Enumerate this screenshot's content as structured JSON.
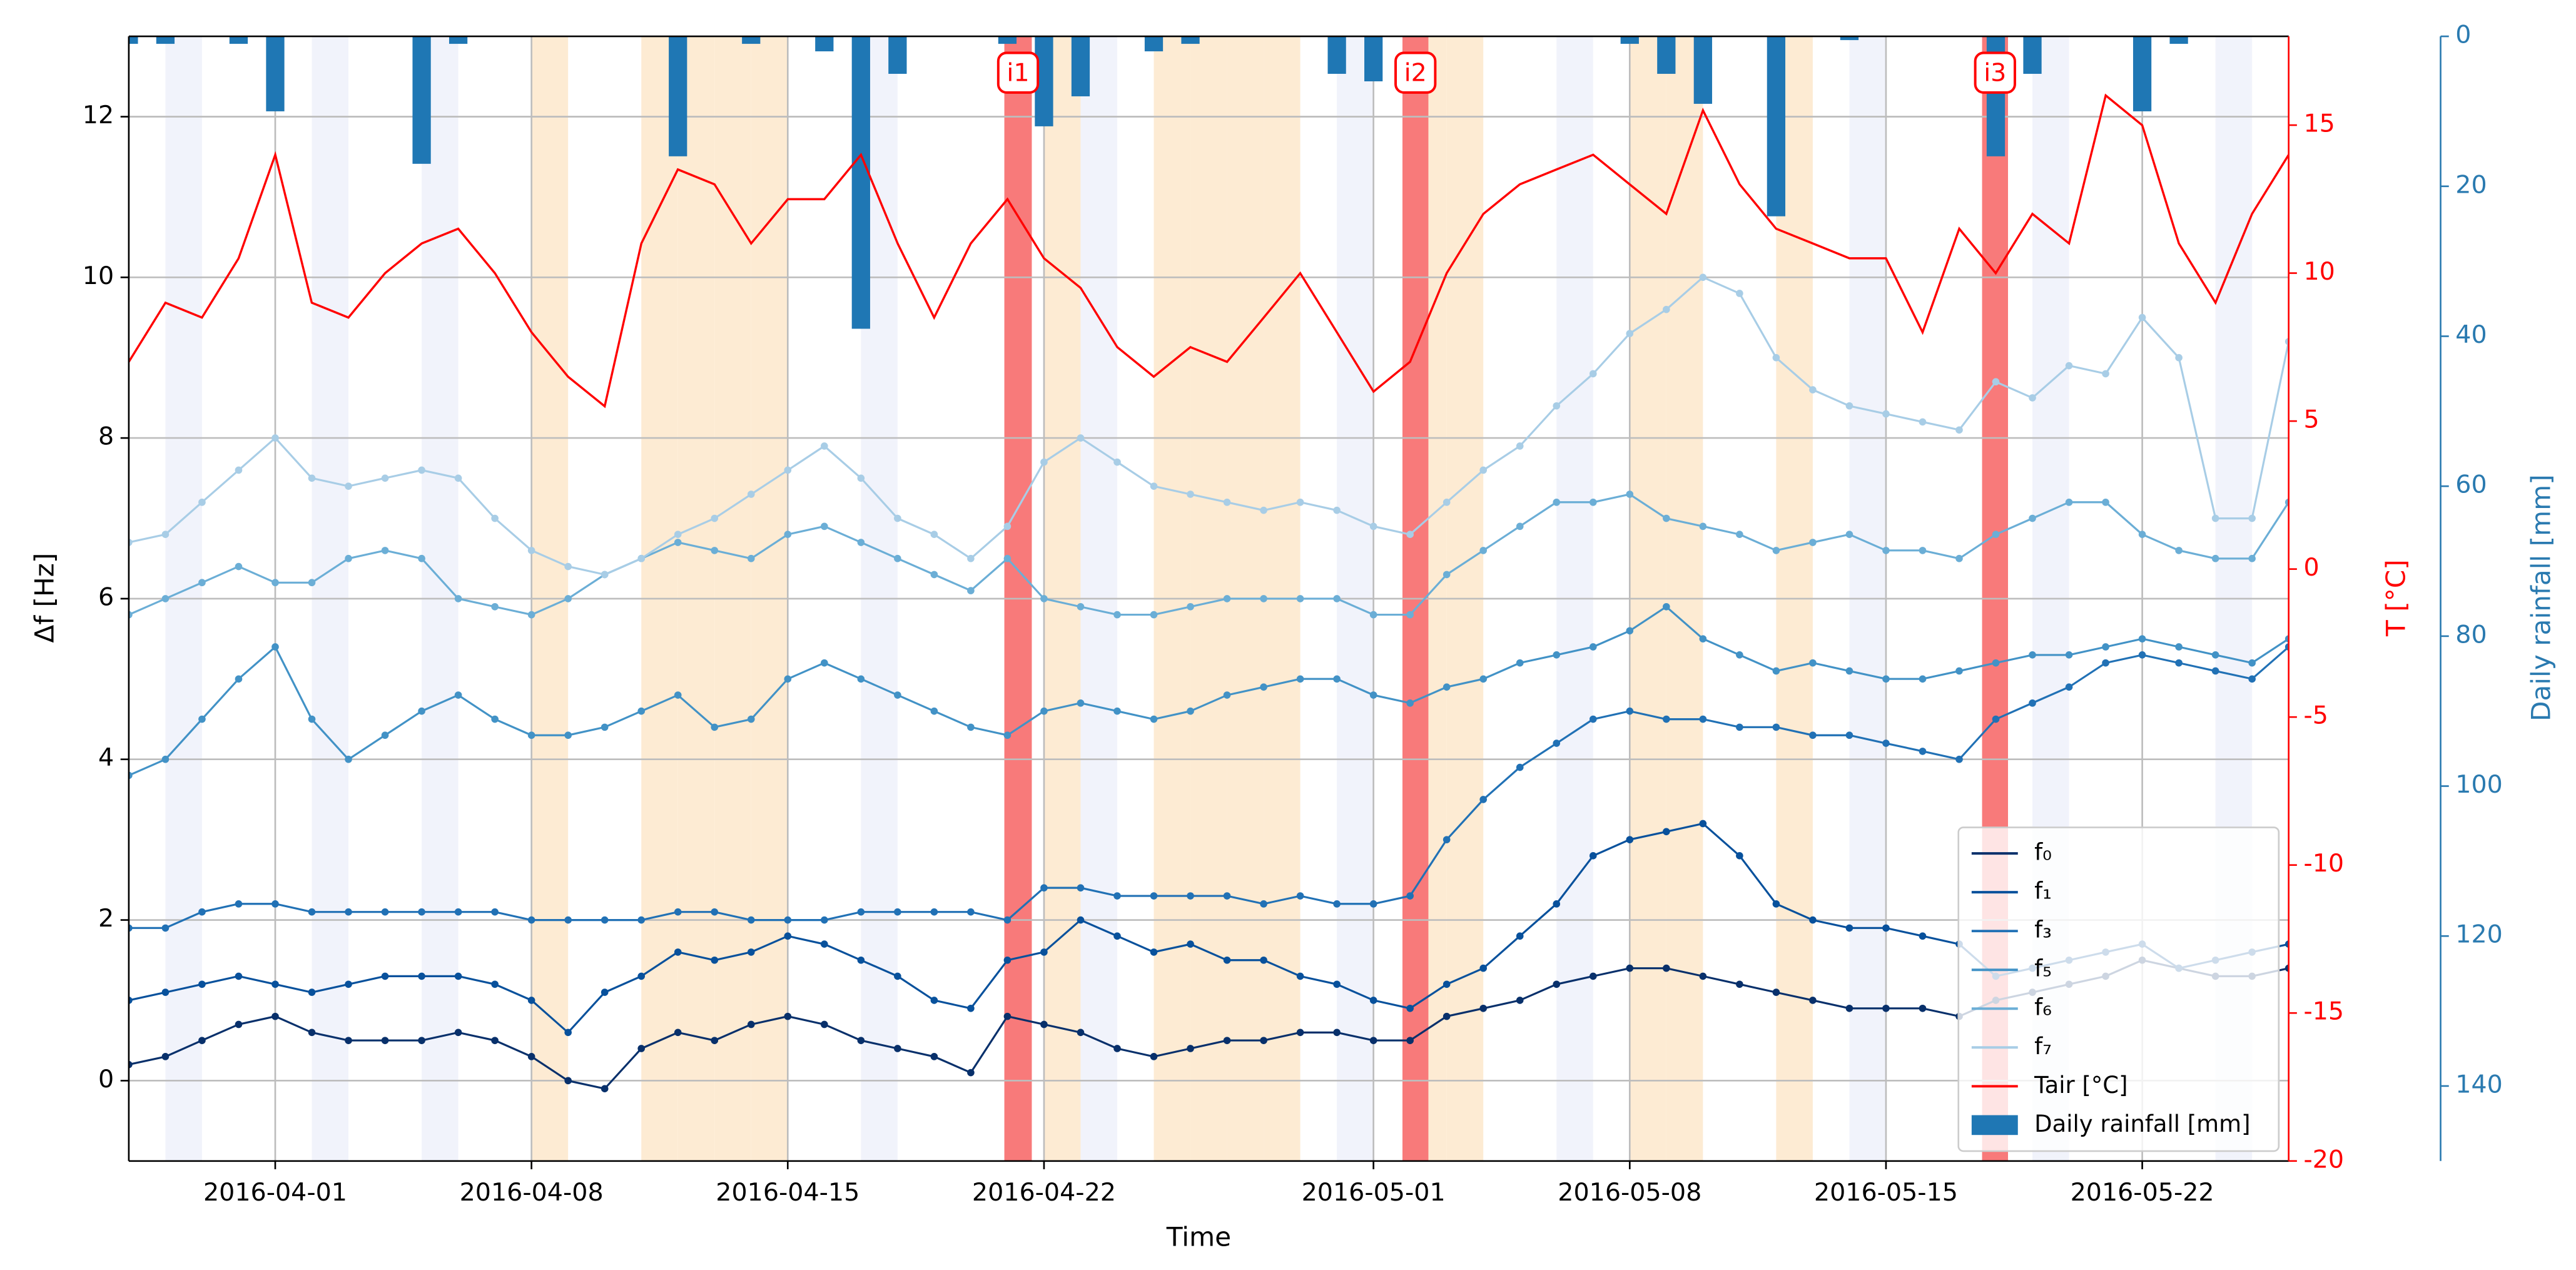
{
  "chart_data": {
    "type": "line",
    "xlabel": "Time",
    "ylabel": "Δf [Hz]",
    "y2label": "T [°C]",
    "y3label": "Daily rainfall [mm]",
    "xlim": [
      "2016-03-28",
      "2016-05-26"
    ],
    "xticks": [
      "2016-04-01",
      "2016-04-08",
      "2016-04-15",
      "2016-04-22",
      "2016-05-01",
      "2016-05-08",
      "2016-05-15",
      "2016-05-22"
    ],
    "ylim": [
      -1,
      13
    ],
    "yticks": [
      0,
      2,
      4,
      6,
      8,
      10,
      12
    ],
    "y2lim": [
      -20,
      18
    ],
    "y2ticks": [
      -20,
      -15,
      -10,
      -5,
      0,
      5,
      10,
      15
    ],
    "y3lim": [
      150,
      0
    ],
    "y3ticks": [
      0,
      20,
      40,
      60,
      80,
      100,
      120,
      140
    ],
    "grid": true,
    "legend": "lower right",
    "x": [
      "2016-03-28",
      "2016-03-29",
      "2016-03-30",
      "2016-03-31",
      "2016-04-01",
      "2016-04-02",
      "2016-04-03",
      "2016-04-04",
      "2016-04-05",
      "2016-04-06",
      "2016-04-07",
      "2016-04-08",
      "2016-04-09",
      "2016-04-10",
      "2016-04-11",
      "2016-04-12",
      "2016-04-13",
      "2016-04-14",
      "2016-04-15",
      "2016-04-16",
      "2016-04-17",
      "2016-04-18",
      "2016-04-19",
      "2016-04-20",
      "2016-04-21",
      "2016-04-22",
      "2016-04-23",
      "2016-04-24",
      "2016-04-25",
      "2016-04-26",
      "2016-04-27",
      "2016-04-28",
      "2016-04-29",
      "2016-04-30",
      "2016-05-01",
      "2016-05-02",
      "2016-05-03",
      "2016-05-04",
      "2016-05-05",
      "2016-05-06",
      "2016-05-07",
      "2016-05-08",
      "2016-05-09",
      "2016-05-10",
      "2016-05-11",
      "2016-05-12",
      "2016-05-13",
      "2016-05-14",
      "2016-05-15",
      "2016-05-16",
      "2016-05-17",
      "2016-05-18",
      "2016-05-19",
      "2016-05-20",
      "2016-05-21",
      "2016-05-22",
      "2016-05-23",
      "2016-05-24",
      "2016-05-25",
      "2016-05-26"
    ],
    "series": [
      {
        "name": "f₀",
        "color": "#08306b",
        "values": [
          0.2,
          0.3,
          0.5,
          0.7,
          0.8,
          0.6,
          0.5,
          0.5,
          0.5,
          0.6,
          0.5,
          0.3,
          0.0,
          -0.1,
          0.4,
          0.6,
          0.5,
          0.7,
          0.8,
          0.7,
          0.5,
          0.4,
          0.3,
          0.1,
          0.8,
          0.7,
          0.6,
          0.4,
          0.3,
          0.4,
          0.5,
          0.5,
          0.6,
          0.6,
          0.5,
          0.5,
          0.8,
          0.9,
          1.0,
          1.2,
          1.3,
          1.4,
          1.4,
          1.3,
          1.2,
          1.1,
          1.0,
          0.9,
          0.9,
          0.9,
          0.8,
          1.0,
          1.1,
          1.2,
          1.3,
          1.5,
          1.4,
          1.3,
          1.3,
          1.4
        ]
      },
      {
        "name": "f₁",
        "color": "#08519c",
        "values": [
          1.0,
          1.1,
          1.2,
          1.3,
          1.2,
          1.1,
          1.2,
          1.3,
          1.3,
          1.3,
          1.2,
          1.0,
          0.6,
          1.1,
          1.3,
          1.6,
          1.5,
          1.6,
          1.8,
          1.7,
          1.5,
          1.3,
          1.0,
          0.9,
          1.5,
          1.6,
          2.0,
          1.8,
          1.6,
          1.7,
          1.5,
          1.5,
          1.3,
          1.2,
          1.0,
          0.9,
          1.2,
          1.4,
          1.8,
          2.2,
          2.8,
          3.0,
          3.1,
          3.2,
          2.8,
          2.2,
          2.0,
          1.9,
          1.9,
          1.8,
          1.7,
          1.3,
          1.4,
          1.5,
          1.6,
          1.7,
          1.4,
          1.5,
          1.6,
          1.7
        ]
      },
      {
        "name": "f₃",
        "color": "#2171b5",
        "values": [
          1.9,
          1.9,
          2.1,
          2.2,
          2.2,
          2.1,
          2.1,
          2.1,
          2.1,
          2.1,
          2.1,
          2.0,
          2.0,
          2.0,
          2.0,
          2.1,
          2.1,
          2.0,
          2.0,
          2.0,
          2.1,
          2.1,
          2.1,
          2.1,
          2.0,
          2.4,
          2.4,
          2.3,
          2.3,
          2.3,
          2.3,
          2.2,
          2.3,
          2.2,
          2.2,
          2.3,
          3.0,
          3.5,
          3.9,
          4.2,
          4.5,
          4.6,
          4.5,
          4.5,
          4.4,
          4.4,
          4.3,
          4.3,
          4.2,
          4.1,
          4.0,
          4.5,
          4.7,
          4.9,
          5.2,
          5.3,
          5.2,
          5.1,
          5.0,
          5.4
        ]
      },
      {
        "name": "f₅",
        "color": "#4292c6",
        "values": [
          3.8,
          4.0,
          4.5,
          5.0,
          5.4,
          4.5,
          4.0,
          4.3,
          4.6,
          4.8,
          4.5,
          4.3,
          4.3,
          4.4,
          4.6,
          4.8,
          4.4,
          4.5,
          5.0,
          5.2,
          5.0,
          4.8,
          4.6,
          4.4,
          4.3,
          4.6,
          4.7,
          4.6,
          4.5,
          4.6,
          4.8,
          4.9,
          5.0,
          5.0,
          4.8,
          4.7,
          4.9,
          5.0,
          5.2,
          5.3,
          5.4,
          5.6,
          5.9,
          5.5,
          5.3,
          5.1,
          5.2,
          5.1,
          5.0,
          5.0,
          5.1,
          5.2,
          5.3,
          5.3,
          5.4,
          5.5,
          5.4,
          5.3,
          5.2,
          5.5
        ]
      },
      {
        "name": "f₆",
        "color": "#6baed6",
        "values": [
          5.8,
          6.0,
          6.2,
          6.4,
          6.2,
          6.2,
          6.5,
          6.6,
          6.5,
          6.0,
          5.9,
          5.8,
          6.0,
          6.3,
          6.5,
          6.7,
          6.6,
          6.5,
          6.8,
          6.9,
          6.7,
          6.5,
          6.3,
          6.1,
          6.5,
          6.0,
          5.9,
          5.8,
          5.8,
          5.9,
          6.0,
          6.0,
          6.0,
          6.0,
          5.8,
          5.8,
          6.3,
          6.6,
          6.9,
          7.2,
          7.2,
          7.3,
          7.0,
          6.9,
          6.8,
          6.6,
          6.7,
          6.8,
          6.6,
          6.6,
          6.5,
          6.8,
          7.0,
          7.2,
          7.2,
          6.8,
          6.6,
          6.5,
          6.5,
          7.2
        ]
      },
      {
        "name": "f₇",
        "color": "#a8cde6",
        "values": [
          6.7,
          6.8,
          7.2,
          7.6,
          8.0,
          7.5,
          7.4,
          7.5,
          7.6,
          7.5,
          7.0,
          6.6,
          6.4,
          6.3,
          6.5,
          6.8,
          7.0,
          7.3,
          7.6,
          7.9,
          7.5,
          7.0,
          6.8,
          6.5,
          6.9,
          7.7,
          8.0,
          7.7,
          7.4,
          7.3,
          7.2,
          7.1,
          7.2,
          7.1,
          6.9,
          6.8,
          7.2,
          7.6,
          7.9,
          8.4,
          8.8,
          9.3,
          9.6,
          10.0,
          9.8,
          9.0,
          8.6,
          8.4,
          8.3,
          8.2,
          8.1,
          8.7,
          8.5,
          8.9,
          8.8,
          9.5,
          9.0,
          7.0,
          7.0,
          9.2
        ]
      },
      {
        "name": "Tair [°C]",
        "color": "#ff0000",
        "axis": "y2",
        "values": [
          7,
          9,
          8.5,
          10.5,
          14,
          9,
          8.5,
          10,
          11,
          11.5,
          10,
          8,
          6.5,
          5.5,
          11,
          13.5,
          13,
          11,
          12.5,
          12.5,
          14,
          11,
          8.5,
          11,
          12.5,
          10.5,
          9.5,
          7.5,
          6.5,
          7.5,
          7,
          8.5,
          10,
          8,
          6,
          7,
          10,
          12,
          13,
          13.5,
          14,
          13,
          12,
          15.5,
          13,
          11.5,
          11,
          10.5,
          10.5,
          8,
          11.5,
          10,
          12,
          11,
          16,
          15,
          11,
          9,
          12,
          14
        ]
      }
    ],
    "rainfall": {
      "name": "Daily rainfall [mm]",
      "color": "#1f77b4",
      "axis": "y3",
      "x": [
        "2016-03-28",
        "2016-03-29",
        "2016-03-31",
        "2016-04-01",
        "2016-04-05",
        "2016-04-06",
        "2016-04-12",
        "2016-04-14",
        "2016-04-16",
        "2016-04-17",
        "2016-04-18",
        "2016-04-21",
        "2016-04-22",
        "2016-04-23",
        "2016-04-25",
        "2016-04-26",
        "2016-04-30",
        "2016-05-01",
        "2016-05-08",
        "2016-05-09",
        "2016-05-10",
        "2016-05-12",
        "2016-05-14",
        "2016-05-18",
        "2016-05-19",
        "2016-05-22",
        "2016-05-23"
      ],
      "values": [
        1,
        1,
        1,
        10,
        17,
        1,
        16,
        1,
        2,
        39,
        5,
        1,
        12,
        8,
        2,
        1,
        5,
        6,
        1,
        5,
        9,
        24,
        0.5,
        16,
        5,
        10,
        1
      ]
    },
    "shaded_periods": [
      {
        "start": "2016-04-08",
        "end": "2016-04-09",
        "color": "#fdebd3"
      },
      {
        "start": "2016-04-11",
        "end": "2016-04-12",
        "color": "#fdebd3"
      },
      {
        "start": "2016-04-12",
        "end": "2016-04-13",
        "color": "#fdebd3"
      },
      {
        "start": "2016-04-13",
        "end": "2016-04-14",
        "color": "#fdebd3"
      },
      {
        "start": "2016-04-14",
        "end": "2016-04-15",
        "color": "#fdebd3"
      },
      {
        "start": "2016-04-22",
        "end": "2016-04-23",
        "color": "#fdebd3"
      },
      {
        "start": "2016-04-25",
        "end": "2016-04-26",
        "color": "#fdebd3"
      },
      {
        "start": "2016-04-26",
        "end": "2016-04-27",
        "color": "#fdebd3"
      },
      {
        "start": "2016-04-27",
        "end": "2016-04-28",
        "color": "#fdebd3"
      },
      {
        "start": "2016-04-28",
        "end": "2016-04-29",
        "color": "#fdebd3"
      },
      {
        "start": "2016-05-02",
        "end": "2016-05-03",
        "color": "#fdebd3"
      },
      {
        "start": "2016-05-03",
        "end": "2016-05-04",
        "color": "#fdebd3"
      },
      {
        "start": "2016-05-08",
        "end": "2016-05-09",
        "color": "#fdebd3"
      },
      {
        "start": "2016-05-09",
        "end": "2016-05-10",
        "color": "#fdebd3"
      },
      {
        "start": "2016-05-12",
        "end": "2016-05-13",
        "color": "#fdebd3"
      },
      {
        "start": "2016-03-29",
        "end": "2016-03-30",
        "color": "#f1f3fb"
      },
      {
        "start": "2016-04-02",
        "end": "2016-04-03",
        "color": "#f1f3fb"
      },
      {
        "start": "2016-04-05",
        "end": "2016-04-06",
        "color": "#f1f3fb"
      },
      {
        "start": "2016-04-17",
        "end": "2016-04-18",
        "color": "#f1f3fb"
      },
      {
        "start": "2016-04-23",
        "end": "2016-04-24",
        "color": "#f1f3fb"
      },
      {
        "start": "2016-04-30",
        "end": "2016-05-01",
        "color": "#f1f3fb"
      },
      {
        "start": "2016-05-06",
        "end": "2016-05-07",
        "color": "#f1f3fb"
      },
      {
        "start": "2016-05-14",
        "end": "2016-05-15",
        "color": "#f1f3fb"
      },
      {
        "start": "2016-05-19",
        "end": "2016-05-20",
        "color": "#f1f3fb"
      },
      {
        "start": "2016-05-24",
        "end": "2016-05-25",
        "color": "#f1f3fb"
      }
    ],
    "events": [
      {
        "label": "i1",
        "start": "2016-04-20T22:00",
        "end": "2016-04-21T16:00",
        "color": "#f87a7a"
      },
      {
        "label": "i2",
        "start": "2016-05-01T19:00",
        "end": "2016-05-02T12:00",
        "color": "#f87a7a"
      },
      {
        "label": "i3",
        "start": "2016-05-17T15:00",
        "end": "2016-05-18T08:00",
        "color": "#f87a7a"
      }
    ]
  }
}
